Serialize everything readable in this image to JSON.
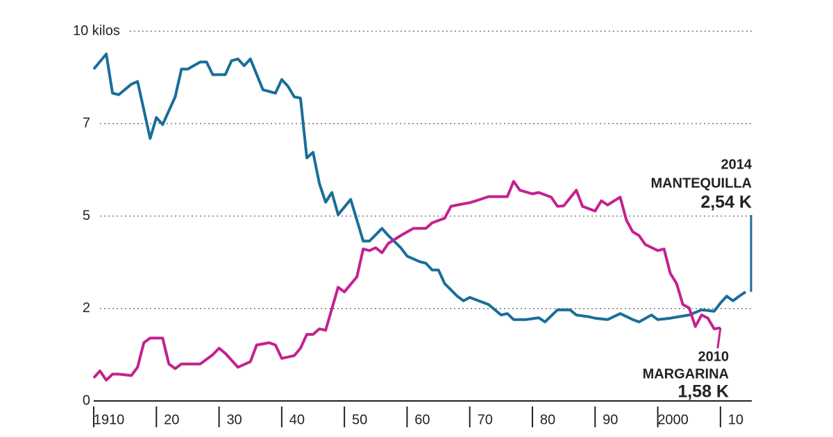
{
  "chart_data": {
    "type": "line",
    "ylim": [
      0,
      10
    ],
    "yticks": [
      0,
      2,
      5,
      7,
      {
        "value": 10,
        "label": "10 kilos"
      }
    ],
    "xlim": [
      1910,
      2015
    ],
    "xticks": [
      1910,
      {
        "value": 1920,
        "label": "20"
      },
      {
        "value": 1930,
        "label": "30"
      },
      {
        "value": 1940,
        "label": "40"
      },
      {
        "value": 1950,
        "label": "50"
      },
      {
        "value": 1960,
        "label": "60"
      },
      {
        "value": 1970,
        "label": "70"
      },
      {
        "value": 1980,
        "label": "80"
      },
      {
        "value": 1990,
        "label": "90"
      },
      2000,
      {
        "value": 2010,
        "label": "10"
      }
    ],
    "grid": true,
    "series": [
      {
        "name": "MANTEQUILLA",
        "color": "#1a6e99",
        "x": [
          1910,
          1912,
          1913,
          1914,
          1916,
          1917,
          1919,
          1920,
          1921,
          1923,
          1924,
          1925,
          1927,
          1928,
          1929,
          1931,
          1932,
          1933,
          1934,
          1935,
          1937,
          1939,
          1940,
          1941,
          1942,
          1943,
          1944,
          1945,
          1946,
          1947,
          1948,
          1949,
          1951,
          1953,
          1954,
          1956,
          1957,
          1959,
          1960,
          1962,
          1963,
          1964,
          1965,
          1966,
          1968,
          1969,
          1970,
          1973,
          1975,
          1976,
          1977,
          1979,
          1981,
          1982,
          1984,
          1986,
          1987,
          1989,
          1990,
          1992,
          1994,
          1996,
          1997,
          1999,
          2000,
          2002,
          2005,
          2007,
          2009,
          2010,
          2011,
          2012,
          2013,
          2014
        ],
        "values": [
          8.77,
          9.26,
          7.99,
          7.94,
          8.28,
          8.37,
          6.68,
          7.2,
          6.98,
          7.87,
          8.77,
          8.77,
          9.0,
          9.0,
          8.59,
          8.59,
          9.04,
          9.1,
          8.88,
          9.1,
          8.1,
          7.99,
          8.43,
          8.21,
          7.87,
          7.83,
          6.26,
          6.38,
          5.71,
          5.3,
          5.51,
          5.03,
          5.36,
          4.19,
          4.19,
          4.6,
          4.37,
          3.97,
          3.7,
          3.52,
          3.47,
          3.25,
          3.25,
          2.81,
          2.4,
          2.25,
          2.36,
          2.13,
          1.86,
          1.89,
          1.76,
          1.76,
          1.8,
          1.71,
          1.97,
          1.97,
          1.86,
          1.82,
          1.79,
          1.76,
          1.89,
          1.76,
          1.71,
          1.86,
          1.76,
          1.79,
          1.86,
          1.97,
          1.94,
          2.18,
          2.4,
          2.25,
          2.4,
          2.54
        ]
      },
      {
        "name": "MARGARINA",
        "color": "#c4218f",
        "x": [
          1910,
          1911,
          1912,
          1913,
          1914,
          1916,
          1917,
          1918,
          1919,
          1921,
          1922,
          1923,
          1924,
          1927,
          1929,
          1930,
          1931,
          1933,
          1935,
          1936,
          1938,
          1939,
          1940,
          1942,
          1943,
          1944,
          1945,
          1946,
          1947,
          1949,
          1950,
          1952,
          1953,
          1954,
          1955,
          1956,
          1957,
          1959,
          1961,
          1963,
          1964,
          1966,
          1967,
          1968,
          1970,
          1971,
          1973,
          1976,
          1977,
          1978,
          1980,
          1981,
          1983,
          1984,
          1985,
          1987,
          1988,
          1990,
          1991,
          1992,
          1994,
          1995,
          1996,
          1997,
          1998,
          2000,
          2001,
          2002,
          2003,
          2004,
          2005,
          2006,
          2007,
          2008,
          2009,
          2010
        ],
        "values": [
          0.5,
          0.65,
          0.45,
          0.58,
          0.58,
          0.55,
          0.73,
          1.26,
          1.36,
          1.36,
          0.8,
          0.7,
          0.8,
          0.8,
          1.0,
          1.14,
          1.03,
          0.73,
          0.85,
          1.21,
          1.26,
          1.21,
          0.92,
          0.98,
          1.14,
          1.44,
          1.44,
          1.56,
          1.53,
          2.69,
          2.54,
          3.03,
          3.93,
          3.88,
          3.97,
          3.81,
          4.11,
          4.37,
          4.6,
          4.6,
          4.78,
          4.93,
          5.21,
          5.24,
          5.29,
          5.33,
          5.42,
          5.42,
          5.75,
          5.56,
          5.48,
          5.51,
          5.41,
          5.21,
          5.22,
          5.56,
          5.21,
          5.11,
          5.33,
          5.24,
          5.41,
          4.87,
          4.49,
          4.37,
          4.08,
          3.88,
          3.93,
          3.14,
          2.81,
          2.13,
          2.02,
          1.61,
          1.86,
          1.79,
          1.56,
          1.58
        ]
      }
    ],
    "annotations": [
      {
        "x": 2014,
        "label": "2,54 K"
      },
      {
        "x": 2010,
        "label": "1,58 K"
      }
    ]
  }
}
